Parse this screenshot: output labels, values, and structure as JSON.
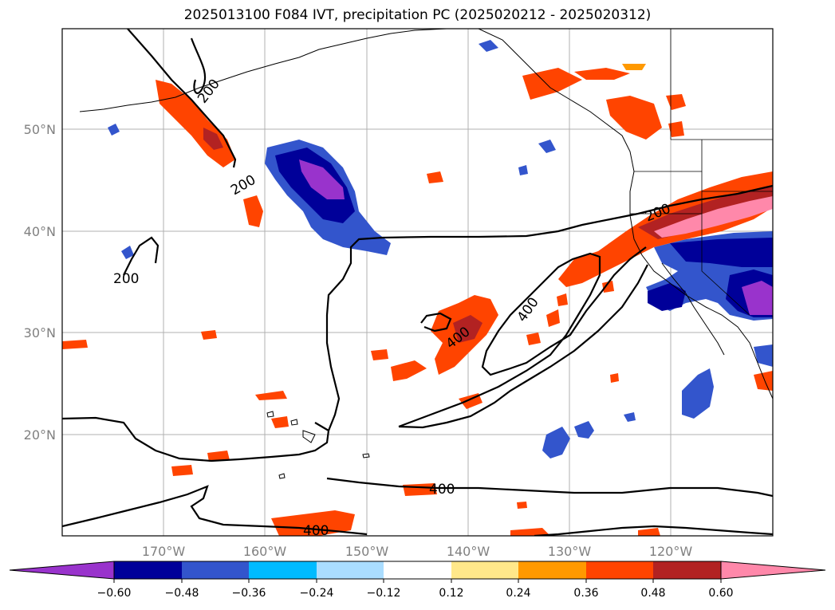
{
  "title": "2025013100 F084 IVT, precipitation PC (2025020212 - 2025020312)",
  "map": {
    "lon_range": [
      -180,
      -110
    ],
    "lat_range": [
      10,
      60
    ],
    "lat_labels": [
      "50°N",
      "40°N",
      "30°N",
      "20°N"
    ],
    "lon_labels": [
      "170°W",
      "160°W",
      "150°W",
      "140°W",
      "130°W",
      "120°W"
    ],
    "gridlines": true,
    "ivt_contour_labels": [
      "200",
      "200",
      "200",
      "200",
      "400",
      "400",
      "400",
      "400"
    ]
  },
  "colorbar": {
    "ticks": [
      "−0.60",
      "−0.48",
      "−0.36",
      "−0.24",
      "−0.12",
      "0.12",
      "0.24",
      "0.36",
      "0.48",
      "0.60"
    ],
    "colors": [
      "#9933cc",
      "#000099",
      "#3355cc",
      "#00bbff",
      "#aaddff",
      "#ffffff",
      "#ffe88a",
      "#ff9900",
      "#ff4400",
      "#b22222",
      "#ff88aa"
    ],
    "extend": "both"
  }
}
